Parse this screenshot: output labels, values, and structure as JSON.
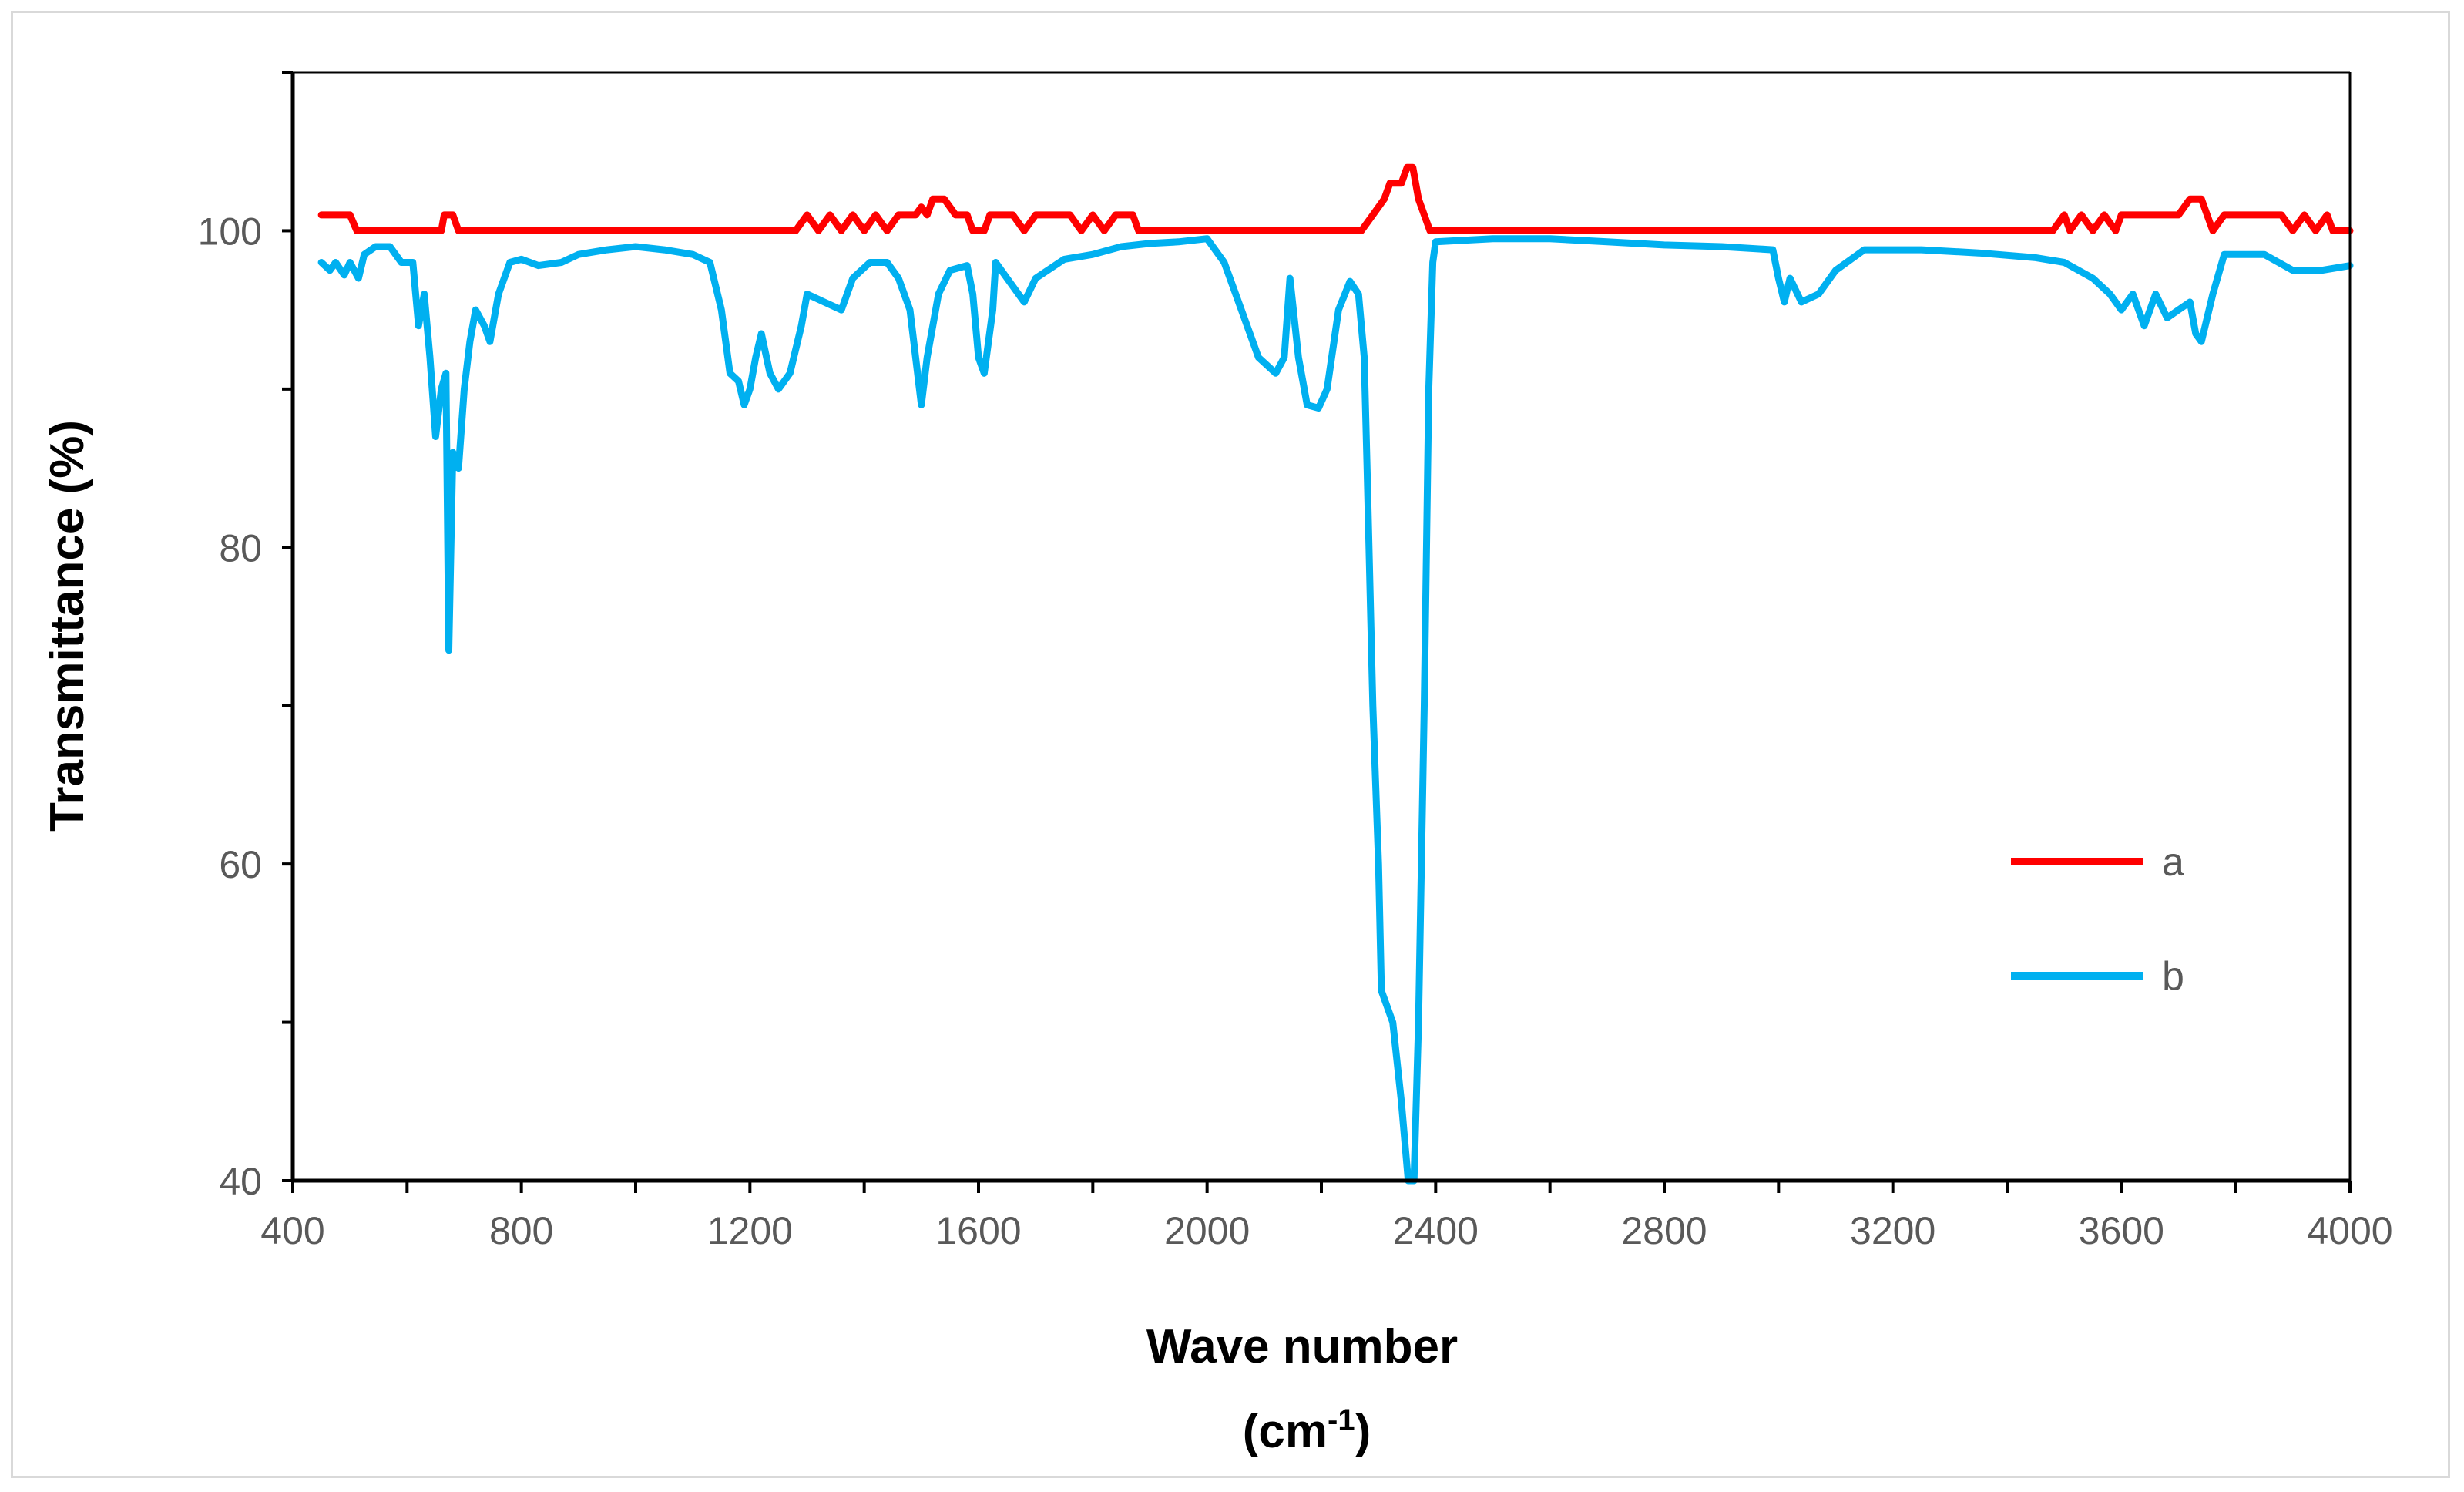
{
  "chart_data": {
    "type": "line",
    "title": "",
    "xlabel": "Wave number",
    "xlabel_unit_base": "(cm",
    "xlabel_unit_sup": "-1",
    "xlabel_unit_end": ")",
    "ylabel": "Transmittance  (%)",
    "xlim": [
      400,
      4000
    ],
    "ylim": [
      40,
      110
    ],
    "x_ticks": [
      400,
      800,
      1200,
      1600,
      2000,
      2400,
      2800,
      3200,
      3600,
      4000
    ],
    "x_tick_labels": [
      "400",
      "800",
      "1200",
      "1600",
      "2000",
      "2400",
      "2800",
      "3200",
      "3600",
      "4000"
    ],
    "y_ticks": [
      40,
      60,
      80,
      100
    ],
    "y_tick_labels": [
      "40",
      "60",
      "80",
      "100"
    ],
    "legend_position": "right-middle",
    "series": [
      {
        "name": "a",
        "color": "#ff0000",
        "points": [
          [
            450,
            101
          ],
          [
            500,
            101
          ],
          [
            512,
            100
          ],
          [
            550,
            100
          ],
          [
            600,
            100
          ],
          [
            660,
            100
          ],
          [
            665,
            101
          ],
          [
            680,
            101
          ],
          [
            690,
            100
          ],
          [
            800,
            100
          ],
          [
            900,
            100
          ],
          [
            1000,
            100
          ],
          [
            1100,
            100
          ],
          [
            1200,
            100
          ],
          [
            1280,
            100
          ],
          [
            1300,
            101
          ],
          [
            1320,
            100
          ],
          [
            1340,
            101
          ],
          [
            1360,
            100
          ],
          [
            1380,
            101
          ],
          [
            1400,
            100
          ],
          [
            1420,
            101
          ],
          [
            1440,
            100
          ],
          [
            1460,
            101
          ],
          [
            1490,
            101
          ],
          [
            1500,
            101.5
          ],
          [
            1510,
            101
          ],
          [
            1520,
            102
          ],
          [
            1540,
            102
          ],
          [
            1560,
            101
          ],
          [
            1580,
            101
          ],
          [
            1590,
            100
          ],
          [
            1610,
            100
          ],
          [
            1620,
            101
          ],
          [
            1660,
            101
          ],
          [
            1680,
            100
          ],
          [
            1700,
            101
          ],
          [
            1760,
            101
          ],
          [
            1780,
            100
          ],
          [
            1800,
            101
          ],
          [
            1820,
            100
          ],
          [
            1840,
            101
          ],
          [
            1870,
            101
          ],
          [
            1880,
            100
          ],
          [
            1950,
            100
          ],
          [
            2100,
            100
          ],
          [
            2250,
            100
          ],
          [
            2270,
            100
          ],
          [
            2290,
            101
          ],
          [
            2310,
            102
          ],
          [
            2320,
            103
          ],
          [
            2340,
            103
          ],
          [
            2350,
            104
          ],
          [
            2360,
            104
          ],
          [
            2370,
            102
          ],
          [
            2380,
            101
          ],
          [
            2390,
            100
          ],
          [
            2500,
            100
          ],
          [
            2800,
            100
          ],
          [
            3000,
            100
          ],
          [
            3200,
            100
          ],
          [
            3400,
            100
          ],
          [
            3480,
            100
          ],
          [
            3500,
            101
          ],
          [
            3510,
            100
          ],
          [
            3530,
            101
          ],
          [
            3550,
            100
          ],
          [
            3570,
            101
          ],
          [
            3590,
            100
          ],
          [
            3600,
            101
          ],
          [
            3700,
            101
          ],
          [
            3720,
            102
          ],
          [
            3740,
            102
          ],
          [
            3750,
            101
          ],
          [
            3760,
            100
          ],
          [
            3780,
            101
          ],
          [
            3880,
            101
          ],
          [
            3900,
            100
          ],
          [
            3920,
            101
          ],
          [
            3940,
            100
          ],
          [
            3960,
            101
          ],
          [
            3970,
            100
          ],
          [
            4000,
            100
          ]
        ]
      },
      {
        "name": "b",
        "color": "#00b0f0",
        "points": [
          [
            450,
            98
          ],
          [
            465,
            97.5
          ],
          [
            475,
            98
          ],
          [
            490,
            97.2
          ],
          [
            500,
            98
          ],
          [
            515,
            97
          ],
          [
            525,
            98.5
          ],
          [
            545,
            99
          ],
          [
            570,
            99
          ],
          [
            590,
            98
          ],
          [
            610,
            98
          ],
          [
            620,
            94
          ],
          [
            630,
            96
          ],
          [
            640,
            92
          ],
          [
            650,
            87
          ],
          [
            660,
            90
          ],
          [
            668,
            91
          ],
          [
            673,
            73.5
          ],
          [
            680,
            86
          ],
          [
            690,
            85
          ],
          [
            700,
            90
          ],
          [
            710,
            93
          ],
          [
            720,
            95
          ],
          [
            735,
            94
          ],
          [
            745,
            93
          ],
          [
            760,
            96
          ],
          [
            780,
            98
          ],
          [
            800,
            98.2
          ],
          [
            830,
            97.8
          ],
          [
            870,
            98
          ],
          [
            900,
            98.5
          ],
          [
            950,
            98.8
          ],
          [
            1000,
            99
          ],
          [
            1050,
            98.8
          ],
          [
            1100,
            98.5
          ],
          [
            1130,
            98
          ],
          [
            1150,
            95
          ],
          [
            1165,
            91
          ],
          [
            1180,
            90.5
          ],
          [
            1190,
            89
          ],
          [
            1200,
            90
          ],
          [
            1210,
            92
          ],
          [
            1220,
            93.5
          ],
          [
            1235,
            91
          ],
          [
            1250,
            90
          ],
          [
            1270,
            91
          ],
          [
            1290,
            94
          ],
          [
            1300,
            96
          ],
          [
            1330,
            95.5
          ],
          [
            1360,
            95
          ],
          [
            1380,
            97
          ],
          [
            1410,
            98
          ],
          [
            1440,
            98
          ],
          [
            1460,
            97
          ],
          [
            1480,
            95
          ],
          [
            1490,
            92
          ],
          [
            1500,
            89
          ],
          [
            1510,
            92
          ],
          [
            1530,
            96
          ],
          [
            1550,
            97.5
          ],
          [
            1580,
            97.8
          ],
          [
            1590,
            96
          ],
          [
            1600,
            92
          ],
          [
            1610,
            91
          ],
          [
            1625,
            95
          ],
          [
            1630,
            98
          ],
          [
            1650,
            97
          ],
          [
            1680,
            95.5
          ],
          [
            1700,
            97
          ],
          [
            1750,
            98.2
          ],
          [
            1800,
            98.5
          ],
          [
            1850,
            99
          ],
          [
            1900,
            99.2
          ],
          [
            1950,
            99.3
          ],
          [
            2000,
            99.5
          ],
          [
            2030,
            98
          ],
          [
            2060,
            95
          ],
          [
            2090,
            92
          ],
          [
            2120,
            91
          ],
          [
            2135,
            92
          ],
          [
            2145,
            97
          ],
          [
            2160,
            92
          ],
          [
            2175,
            89
          ],
          [
            2195,
            88.8
          ],
          [
            2210,
            90
          ],
          [
            2230,
            95
          ],
          [
            2250,
            96.8
          ],
          [
            2265,
            96
          ],
          [
            2275,
            92
          ],
          [
            2280,
            85
          ],
          [
            2290,
            70
          ],
          [
            2300,
            60
          ],
          [
            2305,
            52
          ],
          [
            2315,
            51
          ],
          [
            2325,
            50
          ],
          [
            2340,
            45
          ],
          [
            2352,
            40
          ],
          [
            2362,
            40
          ],
          [
            2370,
            50
          ],
          [
            2380,
            70
          ],
          [
            2388,
            90
          ],
          [
            2395,
            98
          ],
          [
            2400,
            99.3
          ],
          [
            2450,
            99.4
          ],
          [
            2500,
            99.5
          ],
          [
            2600,
            99.5
          ],
          [
            2700,
            99.3
          ],
          [
            2800,
            99.1
          ],
          [
            2900,
            99
          ],
          [
            2990,
            98.8
          ],
          [
            3000,
            97
          ],
          [
            3010,
            95.5
          ],
          [
            3020,
            97
          ],
          [
            3040,
            95.5
          ],
          [
            3070,
            96
          ],
          [
            3100,
            97.5
          ],
          [
            3150,
            98.8
          ],
          [
            3250,
            98.8
          ],
          [
            3350,
            98.6
          ],
          [
            3450,
            98.3
          ],
          [
            3500,
            98
          ],
          [
            3550,
            97
          ],
          [
            3580,
            96
          ],
          [
            3600,
            95
          ],
          [
            3620,
            96
          ],
          [
            3640,
            94
          ],
          [
            3660,
            96
          ],
          [
            3680,
            94.5
          ],
          [
            3700,
            95
          ],
          [
            3720,
            95.5
          ],
          [
            3730,
            93.5
          ],
          [
            3740,
            93
          ],
          [
            3760,
            96
          ],
          [
            3780,
            98.5
          ],
          [
            3850,
            98.5
          ],
          [
            3900,
            97.5
          ],
          [
            3950,
            97.5
          ],
          [
            4000,
            97.8
          ]
        ]
      }
    ]
  }
}
